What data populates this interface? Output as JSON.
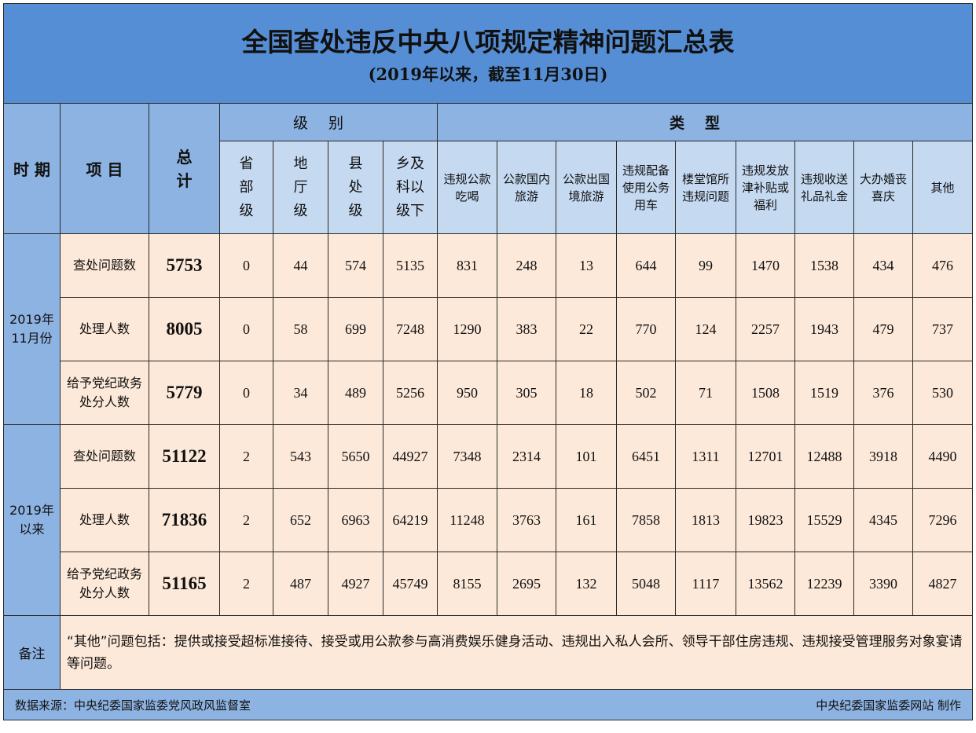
{
  "title": "全国查处违反中央八项规定精神问题汇总表",
  "subtitle": "(2019年以来，截至11月30日)",
  "headers": {
    "period": "时 期",
    "item": "项 目",
    "total": "总计",
    "level_group": "级别",
    "type_group": "类型",
    "levels": [
      "省部级",
      "地厅级",
      "县处级",
      "乡及科以级下"
    ],
    "types": [
      "违规公款吃喝",
      "公款国内旅游",
      "公款出国境旅游",
      "违规配备使用公务用车",
      "楼堂馆所违规问题",
      "违规发放津补贴或福利",
      "违规收送礼品礼金",
      "大办婚丧喜庆",
      "其他"
    ]
  },
  "groups": [
    {
      "period": "2019年11月份",
      "rows": [
        {
          "item": "查处问题数",
          "total": "5753",
          "values": [
            "0",
            "44",
            "574",
            "5135",
            "831",
            "248",
            "13",
            "644",
            "99",
            "1470",
            "1538",
            "434",
            "476"
          ]
        },
        {
          "item": "处理人数",
          "total": "8005",
          "values": [
            "0",
            "58",
            "699",
            "7248",
            "1290",
            "383",
            "22",
            "770",
            "124",
            "2257",
            "1943",
            "479",
            "737"
          ]
        },
        {
          "item": "给予党纪政务处分人数",
          "total": "5779",
          "values": [
            "0",
            "34",
            "489",
            "5256",
            "950",
            "305",
            "18",
            "502",
            "71",
            "1508",
            "1519",
            "376",
            "530"
          ]
        }
      ]
    },
    {
      "period": "2019年以来",
      "rows": [
        {
          "item": "查处问题数",
          "total": "51122",
          "values": [
            "2",
            "543",
            "5650",
            "44927",
            "7348",
            "2314",
            "101",
            "6451",
            "1311",
            "12701",
            "12488",
            "3918",
            "4490"
          ]
        },
        {
          "item": "处理人数",
          "total": "71836",
          "values": [
            "2",
            "652",
            "6963",
            "64219",
            "11248",
            "3763",
            "161",
            "7858",
            "1813",
            "19823",
            "15529",
            "4345",
            "7296"
          ]
        },
        {
          "item": "给予党纪政务处分人数",
          "total": "51165",
          "values": [
            "2",
            "487",
            "4927",
            "45749",
            "8155",
            "2695",
            "132",
            "5048",
            "1117",
            "13562",
            "12239",
            "3390",
            "4827"
          ]
        }
      ]
    }
  ],
  "notes": {
    "label": "备注",
    "text": "“其他”问题包括：提供或接受超标准接待、接受或用公款参与高消费娱乐健身活动、违规出入私人会所、领导干部住房违规、违规接受管理服务对象宴请等问题。"
  },
  "footer": {
    "source": "数据来源：中央纪委国家监委党风政风监督室",
    "credit": "中央纪委国家监委网站 制作"
  },
  "colors": {
    "title_bg": "#558ed5",
    "header_bg": "#8db3e2",
    "subheader_bg": "#c5d9f1",
    "cell_bg": "#fde9d9"
  }
}
